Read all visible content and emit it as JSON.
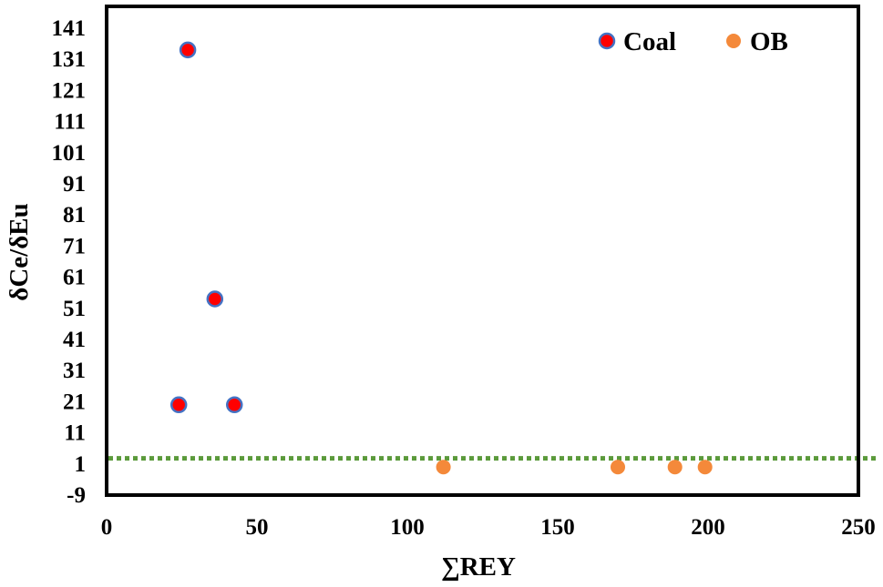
{
  "chart_data": {
    "type": "scatter",
    "title": "",
    "xlabel": "∑REY",
    "ylabel": "δCe/δEu",
    "xlim": [
      0,
      250
    ],
    "ylim": [
      -9,
      141
    ],
    "x_ticks": [
      0,
      50,
      100,
      150,
      200,
      250
    ],
    "y_ticks": [
      -9,
      1,
      11,
      21,
      31,
      41,
      51,
      61,
      71,
      81,
      91,
      101,
      111,
      121,
      131,
      141
    ],
    "grid": false,
    "legend_position": "top-right",
    "reference_line": {
      "y": 2.8,
      "color": "#5b9a3b",
      "style": "dotted"
    },
    "series": [
      {
        "name": "Coal",
        "color": "#ff0000",
        "edge_color": "#4472c4",
        "points": [
          {
            "x": 27,
            "y": 134
          },
          {
            "x": 36,
            "y": 54
          },
          {
            "x": 24,
            "y": 20
          },
          {
            "x": 42.5,
            "y": 20
          }
        ]
      },
      {
        "name": "OB",
        "color": "#f4893a",
        "edge_color": "#f4893a",
        "points": [
          {
            "x": 112,
            "y": 0
          },
          {
            "x": 170,
            "y": 0
          },
          {
            "x": 189,
            "y": 0
          },
          {
            "x": 199,
            "y": 0
          }
        ]
      }
    ]
  }
}
